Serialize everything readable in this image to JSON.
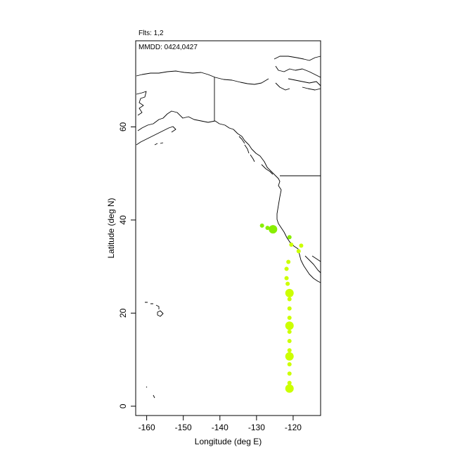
{
  "chart_data": {
    "type": "scatter",
    "header": {
      "flights": "Flts: 1,2",
      "dates": "MMDD: 0424,0427"
    },
    "xlabel": "Longitude (deg E)",
    "ylabel": "Latitude (deg N)",
    "xlim": [
      -163,
      -112.5
    ],
    "ylim": [
      -2,
      78.5
    ],
    "xticks": [
      -160,
      -150,
      -140,
      -130,
      -120
    ],
    "yticks": [
      0,
      20,
      40,
      60
    ],
    "grid": false,
    "map_projection": "lon-lat",
    "coastline_color": "#000000",
    "series": [
      {
        "color": "#ccff00",
        "points": [
          {
            "lon": -121.0,
            "lat": 3.8,
            "size": "large"
          },
          {
            "lon": -121.0,
            "lat": 5.0,
            "size": "small"
          },
          {
            "lon": -121.0,
            "lat": 7.0,
            "size": "small"
          },
          {
            "lon": -121.0,
            "lat": 9.0,
            "size": "small"
          },
          {
            "lon": -121.0,
            "lat": 10.7,
            "size": "large"
          },
          {
            "lon": -121.0,
            "lat": 12.0,
            "size": "small"
          },
          {
            "lon": -121.0,
            "lat": 14.0,
            "size": "small"
          },
          {
            "lon": -121.0,
            "lat": 16.0,
            "size": "small"
          },
          {
            "lon": -121.0,
            "lat": 17.3,
            "size": "large"
          },
          {
            "lon": -121.0,
            "lat": 19.0,
            "size": "small"
          },
          {
            "lon": -121.0,
            "lat": 21.0,
            "size": "small"
          },
          {
            "lon": -121.0,
            "lat": 23.0,
            "size": "small"
          },
          {
            "lon": -121.0,
            "lat": 24.3,
            "size": "large"
          },
          {
            "lon": -121.5,
            "lat": 26.3,
            "size": "small"
          },
          {
            "lon": -121.8,
            "lat": 27.5,
            "size": "small"
          },
          {
            "lon": -121.8,
            "lat": 29.5,
            "size": "small"
          },
          {
            "lon": -121.3,
            "lat": 31.0,
            "size": "small"
          },
          {
            "lon": -118.5,
            "lat": 33.3,
            "size": "small"
          },
          {
            "lon": -117.8,
            "lat": 34.5,
            "size": "small"
          },
          {
            "lon": -120.5,
            "lat": 34.7,
            "size": "small"
          }
        ]
      },
      {
        "color": "#88ee00",
        "points": [
          {
            "lon": -128.5,
            "lat": 38.8,
            "size": "small"
          },
          {
            "lon": -127.0,
            "lat": 38.3,
            "size": "small"
          },
          {
            "lon": -125.5,
            "lat": 38.0,
            "size": "large"
          },
          {
            "lon": -121.0,
            "lat": 36.3,
            "size": "small"
          }
        ]
      }
    ]
  }
}
